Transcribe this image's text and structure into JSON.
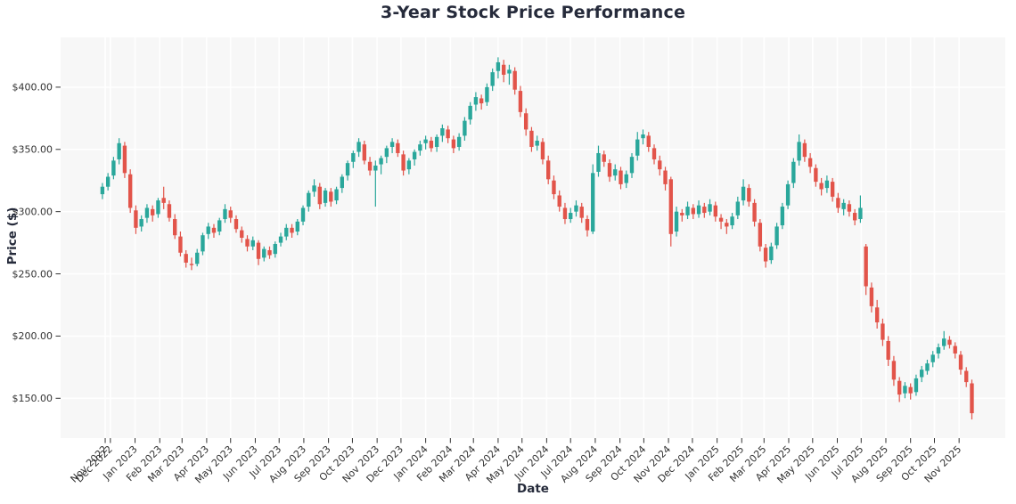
{
  "chart_data": {
    "type": "candlestick",
    "title": "3-Year Stock Price Performance",
    "xlabel": "Date",
    "ylabel": "Price ($)",
    "start_date": "2022-11-21",
    "interval": "weekly",
    "ylim": [
      118,
      440
    ],
    "xlim": [
      -7.5,
      162
    ],
    "grid": true,
    "y_ticks": {
      "values": [
        150,
        200,
        250,
        300,
        350,
        400
      ],
      "labels": [
        "$150.00",
        "$200.00",
        "$250.00",
        "$300.00",
        "$350.00",
        "$400.00"
      ]
    },
    "x_ticks": [
      {
        "label": "Nov 2022",
        "i": 0.5
      },
      {
        "label": "Dec 2022",
        "i": 1.43
      },
      {
        "label": "Jan 2023",
        "i": 5.86
      },
      {
        "label": "Feb 2023",
        "i": 10.29
      },
      {
        "label": "Mar 2023",
        "i": 14.29
      },
      {
        "label": "Apr 2023",
        "i": 18.71
      },
      {
        "label": "May 2023",
        "i": 23.0
      },
      {
        "label": "Jun 2023",
        "i": 27.43
      },
      {
        "label": "Jul 2023",
        "i": 31.71
      },
      {
        "label": "Aug 2023",
        "i": 36.14
      },
      {
        "label": "Sep 2023",
        "i": 40.57
      },
      {
        "label": "Oct 2023",
        "i": 44.86
      },
      {
        "label": "Nov 2023",
        "i": 49.29
      },
      {
        "label": "Dec 2023",
        "i": 53.57
      },
      {
        "label": "Jan 2024",
        "i": 58.0
      },
      {
        "label": "Feb 2024",
        "i": 62.43
      },
      {
        "label": "Mar 2024",
        "i": 66.57
      },
      {
        "label": "Apr 2024",
        "i": 71.0
      },
      {
        "label": "May 2024",
        "i": 75.29
      },
      {
        "label": "Jun 2024",
        "i": 79.71
      },
      {
        "label": "Jul 2024",
        "i": 84.0
      },
      {
        "label": "Aug 2024",
        "i": 88.43
      },
      {
        "label": "Sep 2024",
        "i": 92.86
      },
      {
        "label": "Oct 2024",
        "i": 97.14
      },
      {
        "label": "Nov 2024",
        "i": 101.57
      },
      {
        "label": "Dec 2024",
        "i": 105.86
      },
      {
        "label": "Jan 2025",
        "i": 110.29
      },
      {
        "label": "Feb 2025",
        "i": 114.71
      },
      {
        "label": "Mar 2025",
        "i": 118.71
      },
      {
        "label": "Apr 2025",
        "i": 123.14
      },
      {
        "label": "May 2025",
        "i": 127.43
      },
      {
        "label": "Jun 2025",
        "i": 131.86
      },
      {
        "label": "Jul 2025",
        "i": 136.14
      },
      {
        "label": "Aug 2025",
        "i": 140.57
      },
      {
        "label": "Sep 2025",
        "i": 145.0
      },
      {
        "label": "Oct 2025",
        "i": 149.29
      },
      {
        "label": "Nov 2025",
        "i": 153.71
      }
    ],
    "colors": {
      "up": "#2aa79b",
      "down": "#e2544a",
      "plot_bg": "#f7f7f7",
      "grid": "#ffffff",
      "tick_text": "#333333",
      "title_text": "#262b3b"
    },
    "ohlc": [
      [
        314,
        323,
        310,
        320
      ],
      [
        320,
        331,
        317,
        328
      ],
      [
        329,
        344,
        326,
        341
      ],
      [
        342,
        359,
        338,
        355
      ],
      [
        353,
        356,
        327,
        331
      ],
      [
        330,
        334,
        299,
        303
      ],
      [
        301,
        305,
        282,
        287
      ],
      [
        288,
        297,
        284,
        294
      ],
      [
        295,
        306,
        291,
        303
      ],
      [
        302,
        305,
        292,
        297
      ],
      [
        298,
        311,
        295,
        309
      ],
      [
        311,
        320,
        302,
        307
      ],
      [
        306,
        309,
        292,
        295
      ],
      [
        294,
        298,
        278,
        281
      ],
      [
        280,
        284,
        264,
        267
      ],
      [
        266,
        269,
        255,
        259
      ],
      [
        258,
        263,
        253,
        257
      ],
      [
        258,
        270,
        256,
        267
      ],
      [
        268,
        283,
        265,
        281
      ],
      [
        282,
        291,
        278,
        288
      ],
      [
        287,
        290,
        279,
        283
      ],
      [
        284,
        295,
        281,
        293
      ],
      [
        294,
        306,
        291,
        302
      ],
      [
        301,
        304,
        291,
        295
      ],
      [
        294,
        297,
        283,
        286
      ],
      [
        285,
        288,
        275,
        279
      ],
      [
        278,
        281,
        268,
        272
      ],
      [
        272,
        280,
        269,
        277
      ],
      [
        275,
        277,
        257,
        262
      ],
      [
        263,
        272,
        260,
        270
      ],
      [
        269,
        272,
        262,
        265
      ],
      [
        266,
        276,
        263,
        274
      ],
      [
        275,
        283,
        272,
        280
      ],
      [
        280,
        290,
        277,
        287
      ],
      [
        287,
        290,
        279,
        283
      ],
      [
        284,
        294,
        281,
        292
      ],
      [
        292,
        305,
        289,
        303
      ],
      [
        304,
        317,
        300,
        315
      ],
      [
        316,
        326,
        312,
        321
      ],
      [
        320,
        323,
        302,
        306
      ],
      [
        307,
        319,
        304,
        317
      ],
      [
        316,
        319,
        304,
        308
      ],
      [
        309,
        320,
        306,
        318
      ],
      [
        319,
        330,
        315,
        328
      ],
      [
        329,
        341,
        325,
        339
      ],
      [
        340,
        349,
        335,
        347
      ],
      [
        348,
        359,
        344,
        356
      ],
      [
        354,
        357,
        338,
        341
      ],
      [
        340,
        344,
        329,
        333
      ],
      [
        333,
        341,
        304,
        337
      ],
      [
        338,
        345,
        330,
        343
      ],
      [
        344,
        353,
        339,
        351
      ],
      [
        352,
        359,
        347,
        356
      ],
      [
        355,
        358,
        344,
        347
      ],
      [
        346,
        349,
        329,
        333
      ],
      [
        334,
        343,
        330,
        341
      ],
      [
        342,
        350,
        337,
        348
      ],
      [
        349,
        357,
        345,
        354
      ],
      [
        355,
        361,
        350,
        358
      ],
      [
        357,
        360,
        348,
        351
      ],
      [
        352,
        362,
        348,
        360
      ],
      [
        361,
        370,
        356,
        367
      ],
      [
        366,
        369,
        355,
        359
      ],
      [
        358,
        361,
        347,
        351
      ],
      [
        352,
        363,
        349,
        360
      ],
      [
        361,
        376,
        357,
        373
      ],
      [
        374,
        388,
        370,
        385
      ],
      [
        386,
        396,
        381,
        392
      ],
      [
        391,
        394,
        382,
        387
      ],
      [
        388,
        403,
        385,
        400
      ],
      [
        401,
        415,
        397,
        412
      ],
      [
        413,
        424,
        407,
        420
      ],
      [
        418,
        422,
        404,
        410
      ],
      [
        411,
        418,
        402,
        414
      ],
      [
        413,
        416,
        394,
        398
      ],
      [
        397,
        401,
        376,
        380
      ],
      [
        379,
        383,
        361,
        366
      ],
      [
        365,
        368,
        348,
        352
      ],
      [
        353,
        361,
        349,
        357
      ],
      [
        356,
        359,
        338,
        342
      ],
      [
        341,
        345,
        322,
        326
      ],
      [
        325,
        329,
        310,
        314
      ],
      [
        313,
        317,
        300,
        304
      ],
      [
        303,
        307,
        290,
        294
      ],
      [
        294,
        303,
        291,
        299
      ],
      [
        300,
        309,
        296,
        305
      ],
      [
        304,
        307,
        291,
        295
      ],
      [
        294,
        297,
        280,
        285
      ],
      [
        284,
        338,
        282,
        331
      ],
      [
        332,
        353,
        328,
        347
      ],
      [
        346,
        349,
        336,
        340
      ],
      [
        339,
        342,
        324,
        328
      ],
      [
        329,
        338,
        325,
        334
      ],
      [
        333,
        336,
        318,
        322
      ],
      [
        323,
        333,
        319,
        330
      ],
      [
        331,
        347,
        327,
        344
      ],
      [
        345,
        364,
        341,
        358
      ],
      [
        359,
        366,
        354,
        362
      ],
      [
        361,
        364,
        348,
        352
      ],
      [
        351,
        354,
        338,
        342
      ],
      [
        341,
        345,
        329,
        334
      ],
      [
        333,
        336,
        317,
        322
      ],
      [
        326,
        328,
        272,
        282
      ],
      [
        284,
        304,
        280,
        300
      ],
      [
        299,
        302,
        292,
        297
      ],
      [
        297,
        308,
        294,
        304
      ],
      [
        303,
        306,
        294,
        298
      ],
      [
        298,
        309,
        295,
        305
      ],
      [
        304,
        307,
        295,
        299
      ],
      [
        300,
        310,
        297,
        306
      ],
      [
        305,
        308,
        292,
        296
      ],
      [
        295,
        298,
        286,
        292
      ],
      [
        291,
        294,
        282,
        288
      ],
      [
        289,
        299,
        286,
        296
      ],
      [
        297,
        312,
        294,
        308
      ],
      [
        309,
        326,
        305,
        320
      ],
      [
        319,
        322,
        304,
        308
      ],
      [
        307,
        310,
        288,
        292
      ],
      [
        291,
        294,
        268,
        272
      ],
      [
        271,
        274,
        255,
        260
      ],
      [
        261,
        275,
        258,
        272
      ],
      [
        273,
        291,
        270,
        288
      ],
      [
        289,
        307,
        286,
        304
      ],
      [
        305,
        325,
        302,
        322
      ],
      [
        323,
        343,
        319,
        340
      ],
      [
        341,
        362,
        337,
        356
      ],
      [
        355,
        358,
        340,
        344
      ],
      [
        343,
        347,
        331,
        336
      ],
      [
        335,
        338,
        320,
        324
      ],
      [
        323,
        327,
        313,
        318
      ],
      [
        319,
        329,
        315,
        325
      ],
      [
        324,
        327,
        308,
        312
      ],
      [
        311,
        315,
        299,
        303
      ],
      [
        302,
        310,
        297,
        307
      ],
      [
        306,
        309,
        296,
        300
      ],
      [
        299,
        302,
        289,
        293
      ],
      [
        294,
        313,
        291,
        303
      ],
      [
        272,
        274,
        233,
        240
      ],
      [
        239,
        243,
        219,
        224
      ],
      [
        223,
        229,
        206,
        211
      ],
      [
        210,
        214,
        192,
        197
      ],
      [
        196,
        200,
        176,
        181
      ],
      [
        180,
        184,
        160,
        165
      ],
      [
        164,
        167,
        147,
        153
      ],
      [
        154,
        163,
        150,
        160
      ],
      [
        159,
        162,
        149,
        154
      ],
      [
        155,
        169,
        152,
        166
      ],
      [
        167,
        176,
        163,
        173
      ],
      [
        172,
        181,
        169,
        178
      ],
      [
        179,
        188,
        175,
        185
      ],
      [
        186,
        194,
        182,
        191
      ],
      [
        192,
        204,
        189,
        198
      ],
      [
        197,
        200,
        190,
        193
      ],
      [
        192,
        195,
        182,
        186
      ],
      [
        185,
        188,
        169,
        173
      ],
      [
        172,
        175,
        159,
        163
      ],
      [
        162,
        165,
        133,
        138
      ]
    ]
  }
}
